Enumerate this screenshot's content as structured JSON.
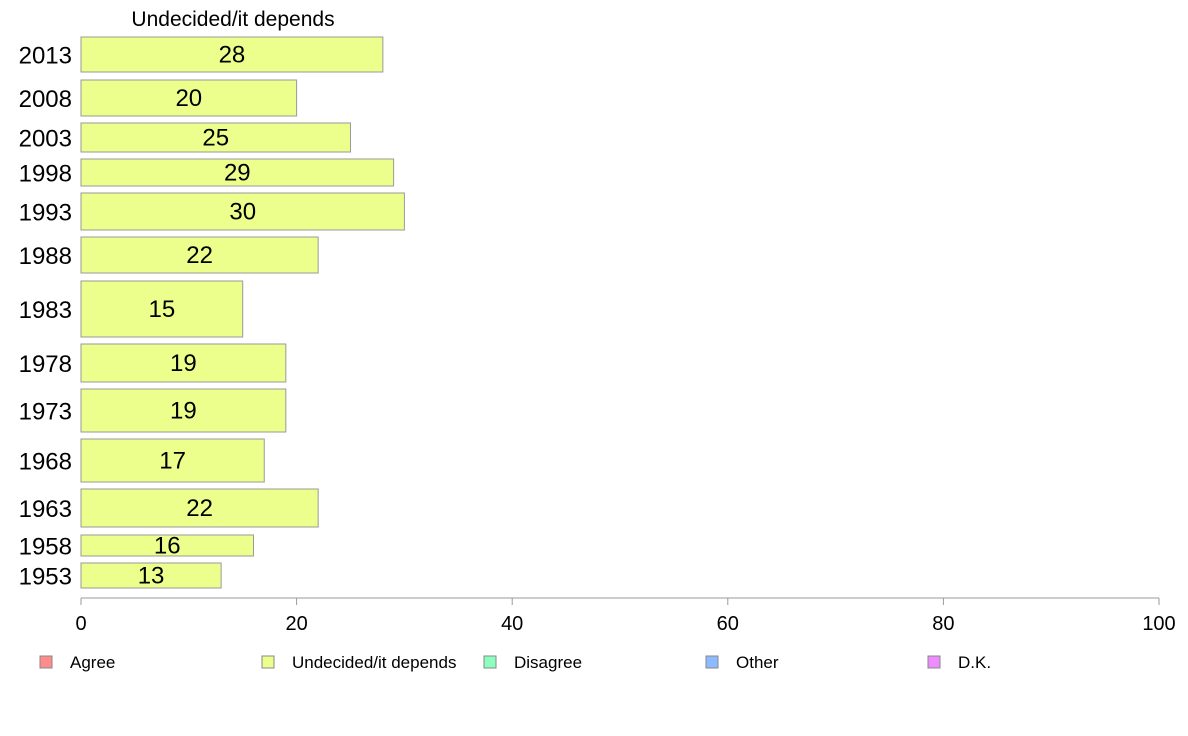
{
  "chart_data": {
    "type": "bar",
    "orientation": "horizontal",
    "title": "Undecided/it depends",
    "categories": [
      "2013",
      "2008",
      "2003",
      "1998",
      "1993",
      "1988",
      "1983",
      "1978",
      "1973",
      "1968",
      "1963",
      "1958",
      "1953"
    ],
    "series": [
      {
        "name": "Undecided/it depends",
        "values": [
          28,
          20,
          25,
          29,
          30,
          22,
          15,
          19,
          19,
          17,
          22,
          16,
          13
        ]
      }
    ],
    "xlim": [
      0,
      100
    ],
    "xticks": [
      0,
      20,
      40,
      60,
      80,
      100
    ],
    "grid": false,
    "legend_position": "bottom",
    "legend": [
      {
        "label": "Agree",
        "color": "#ff8c8c"
      },
      {
        "label": "Undecided/it depends",
        "color": "#ecff8c"
      },
      {
        "label": "Disagree",
        "color": "#8cffc0"
      },
      {
        "label": "Other",
        "color": "#8cbcff"
      },
      {
        "label": "D.K.",
        "color": "#ec8cff"
      }
    ],
    "bar_color": "#ecff8c"
  }
}
